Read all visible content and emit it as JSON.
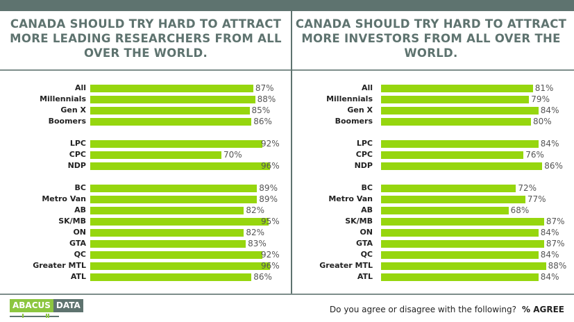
{
  "footer": {
    "logo_left": "ABACUS",
    "logo_right": "DATA",
    "question": "Do you agree or disagree with the following?",
    "unit": "% AGREE"
  },
  "colors": {
    "bar": "#96d60e",
    "header": "#5e736f"
  },
  "chart_data": [
    {
      "type": "bar",
      "orientation": "horizontal",
      "title": "CANADA SHOULD TRY HARD TO ATTRACT MORE LEADING RESEARCHERS FROM ALL OVER THE WORLD.",
      "groups": [
        [
          "All",
          "Millennials",
          "Gen X",
          "Boomers"
        ],
        [
          "LPC",
          "CPC",
          "NDP"
        ],
        [
          "BC",
          "Metro Van",
          "AB",
          "SK/MB",
          "ON",
          "GTA",
          "QC",
          "Greater MTL",
          "ATL"
        ]
      ],
      "categories": [
        "All",
        "Millennials",
        "Gen X",
        "Boomers",
        "LPC",
        "CPC",
        "NDP",
        "BC",
        "Metro Van",
        "AB",
        "SK/MB",
        "ON",
        "GTA",
        "QC",
        "Greater MTL",
        "ATL"
      ],
      "values": [
        87,
        88,
        85,
        86,
        92,
        70,
        96,
        89,
        89,
        82,
        95,
        82,
        83,
        92,
        96,
        86
      ],
      "unit": "%"
    },
    {
      "type": "bar",
      "orientation": "horizontal",
      "title": "CANADA SHOULD TRY HARD TO ATTRACT MORE INVESTORS FROM ALL OVER THE WORLD.",
      "groups": [
        [
          "All",
          "Millennials",
          "Gen X",
          "Boomers"
        ],
        [
          "LPC",
          "CPC",
          "NDP"
        ],
        [
          "BC",
          "Metro Van",
          "AB",
          "SK/MB",
          "ON",
          "GTA",
          "QC",
          "Greater MTL",
          "ATL"
        ]
      ],
      "categories": [
        "All",
        "Millennials",
        "Gen X",
        "Boomers",
        "LPC",
        "CPC",
        "NDP",
        "BC",
        "Metro Van",
        "AB",
        "SK/MB",
        "ON",
        "GTA",
        "QC",
        "Greater MTL",
        "ATL"
      ],
      "values": [
        81,
        79,
        84,
        80,
        84,
        76,
        86,
        72,
        77,
        68,
        87,
        84,
        87,
        84,
        88,
        84
      ],
      "unit": "%"
    }
  ]
}
